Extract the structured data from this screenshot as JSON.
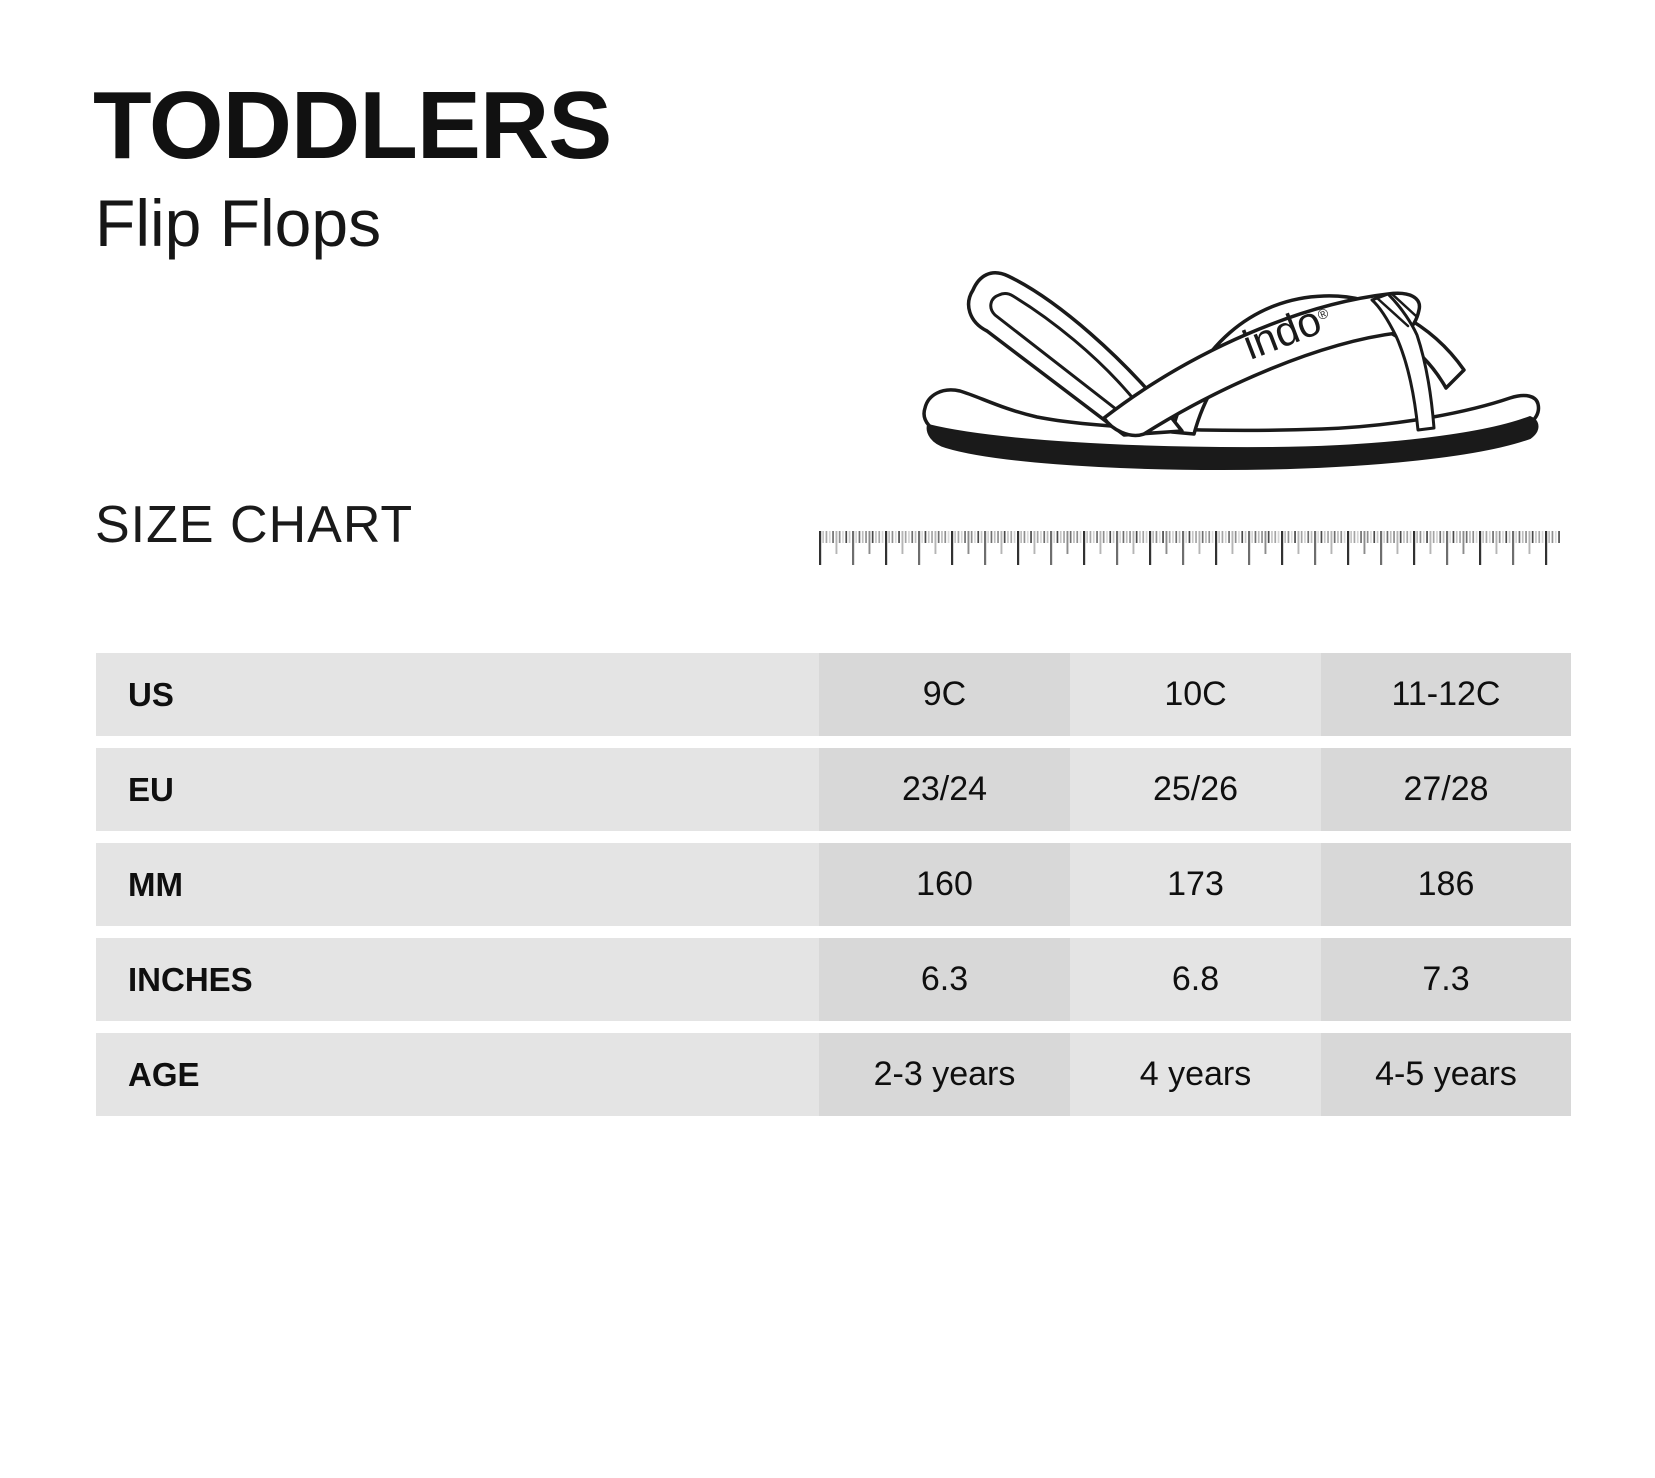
{
  "header": {
    "title": "TODDLERS",
    "subtitle": "Flip Flops"
  },
  "section": {
    "label": "SIZE CHART"
  },
  "brand": {
    "name": "indo",
    "mark": "®"
  },
  "illustration": {
    "description": "line drawing of toddler flip flop sandal with heel strap, indo logo on strap"
  },
  "colors": {
    "background": "#ffffff",
    "text": "#111111",
    "row_light": "#e4e4e4",
    "row_dark": "#d8d8d8",
    "line_art": "#1a1a1a"
  },
  "size_table": {
    "rows": [
      {
        "label": "US",
        "values": [
          "9C",
          "10C",
          "11-12C"
        ]
      },
      {
        "label": "EU",
        "values": [
          "23/24",
          "25/26",
          "27/28"
        ]
      },
      {
        "label": "MM",
        "values": [
          "160",
          "173",
          "186"
        ]
      },
      {
        "label": "INCHES",
        "values": [
          "6.3",
          "6.8",
          "7.3"
        ]
      },
      {
        "label": "AGE",
        "values": [
          "2-3 years",
          "4 years",
          "4-5 years"
        ]
      }
    ]
  }
}
